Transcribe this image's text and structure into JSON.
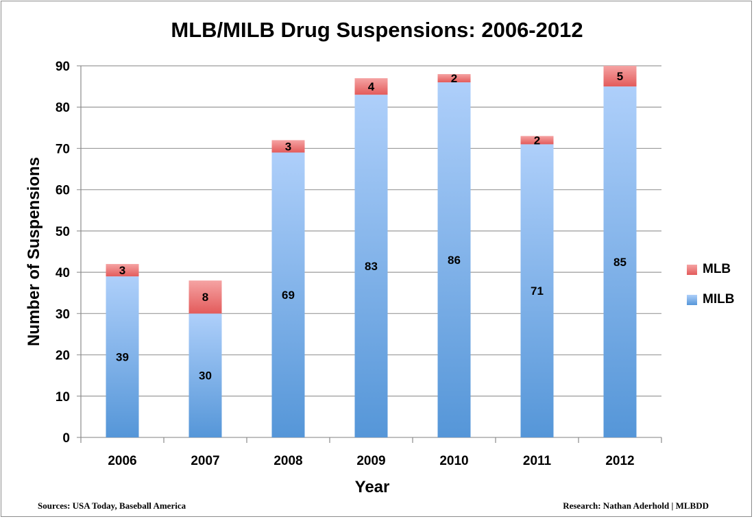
{
  "chart_data": {
    "type": "bar",
    "stacked": true,
    "title": "MLB/MILB Drug Suspensions: 2006-2012",
    "xlabel": "Year",
    "ylabel": "Number of Suspensions",
    "categories": [
      "2006",
      "2007",
      "2008",
      "2009",
      "2010",
      "2011",
      "2012"
    ],
    "ylim": [
      0,
      90
    ],
    "yticks": [
      "0",
      "10",
      "20",
      "30",
      "40",
      "50",
      "60",
      "70",
      "80",
      "90"
    ],
    "grid": true,
    "legend_position": "right",
    "series": [
      {
        "name": "MILB",
        "values": [
          39,
          30,
          69,
          83,
          86,
          71,
          85
        ],
        "color": "#8fb8ef"
      },
      {
        "name": "MLB",
        "values": [
          3,
          8,
          3,
          4,
          2,
          2,
          5
        ],
        "color": "#ee8585"
      }
    ]
  },
  "legend": [
    {
      "label": "MLB",
      "color": "#ee8585"
    },
    {
      "label": "MILB",
      "color": "#8fb8ef"
    }
  ],
  "footer": {
    "source": "Sources: USA Today, Baseball America",
    "credit": "Research: Nathan Aderhold | MLBDD"
  }
}
